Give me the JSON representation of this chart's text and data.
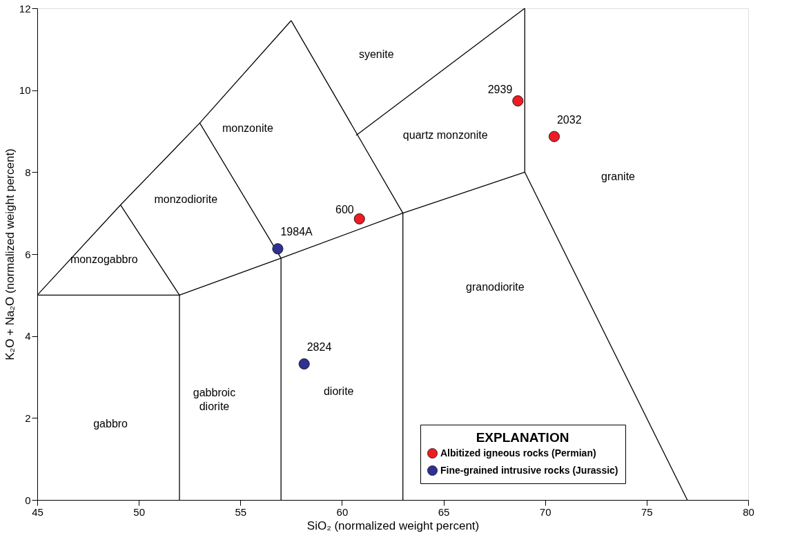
{
  "chart_data": {
    "type": "scatter",
    "xlabel": "SiO₂ (normalized weight percent)",
    "ylabel": "K₂O + Na₂O (normalized weight percent)",
    "legend_title": "EXPLANATION",
    "xlim": [
      45,
      80
    ],
    "xticks": [
      45,
      50,
      55,
      60,
      65,
      70,
      75,
      80
    ],
    "ylim": [
      0,
      12
    ],
    "yticks": [
      0,
      2,
      4,
      6,
      8,
      10,
      12
    ],
    "grid": false,
    "legend": "bottom right",
    "marker": "circle",
    "series": [
      {
        "name": "Albitized igneous rocks (Permian)",
        "color": "#ed1c24",
        "x": [
          68.66,
          70.45,
          60.86
        ],
        "values": [
          9.74,
          8.87,
          6.86
        ]
      },
      {
        "name": "Fine-grained intrusive rocks (Jurassic)",
        "color": "#2e3192",
        "x": [
          56.84,
          58.14
        ],
        "values": [
          6.13,
          3.32
        ]
      },
      {
        "type": "line",
        "marker": "none",
        "color": "#000000",
        "x": [
          45,
          49.1,
          53,
          57.5
        ],
        "values": [
          5,
          7.2,
          9.2,
          11.7
        ]
      },
      {
        "type": "line",
        "marker": "none",
        "color": "#000000",
        "x": [
          45,
          52,
          57,
          63,
          69
        ],
        "values": [
          5,
          5,
          5.9,
          7,
          8
        ]
      },
      {
        "type": "line",
        "marker": "none",
        "color": "#000000",
        "x": [
          52,
          52
        ],
        "values": [
          0,
          5
        ]
      },
      {
        "type": "line",
        "marker": "none",
        "color": "#000000",
        "x": [
          49.1,
          52
        ],
        "values": [
          7.2,
          5
        ]
      },
      {
        "type": "line",
        "marker": "none",
        "color": "#000000",
        "x": [
          53,
          57,
          57
        ],
        "values": [
          9.2,
          5.9,
          0
        ]
      },
      {
        "type": "line",
        "marker": "none",
        "color": "#000000",
        "x": [
          57.5,
          63,
          63
        ],
        "values": [
          11.7,
          7,
          0
        ]
      },
      {
        "type": "line",
        "marker": "none",
        "color": "#000000",
        "x": [
          60.7,
          69
        ],
        "values": [
          8.9,
          12
        ]
      },
      {
        "type": "line",
        "marker": "none",
        "color": "#000000",
        "x": [
          69,
          69,
          77
        ],
        "values": [
          12,
          8,
          0
        ]
      }
    ],
    "annotations": [
      "gabbro",
      "monzogabbro",
      "monzodiorite",
      "monzonite",
      "syenite",
      "quartz monzonite",
      "granite",
      "granodiorite",
      "diorite",
      "gabbroic\ndiorite",
      {
        "text": "2939",
        "x": 68.66,
        "y": 9.74
      },
      {
        "text": "2032",
        "x": 70.45,
        "y": 8.87
      },
      {
        "text": "600",
        "x": 60.86,
        "y": 6.86
      },
      {
        "text": "1984A",
        "x": 56.84,
        "y": 6.13
      },
      {
        "text": "2824",
        "x": 58.14,
        "y": 3.32
      }
    ]
  }
}
